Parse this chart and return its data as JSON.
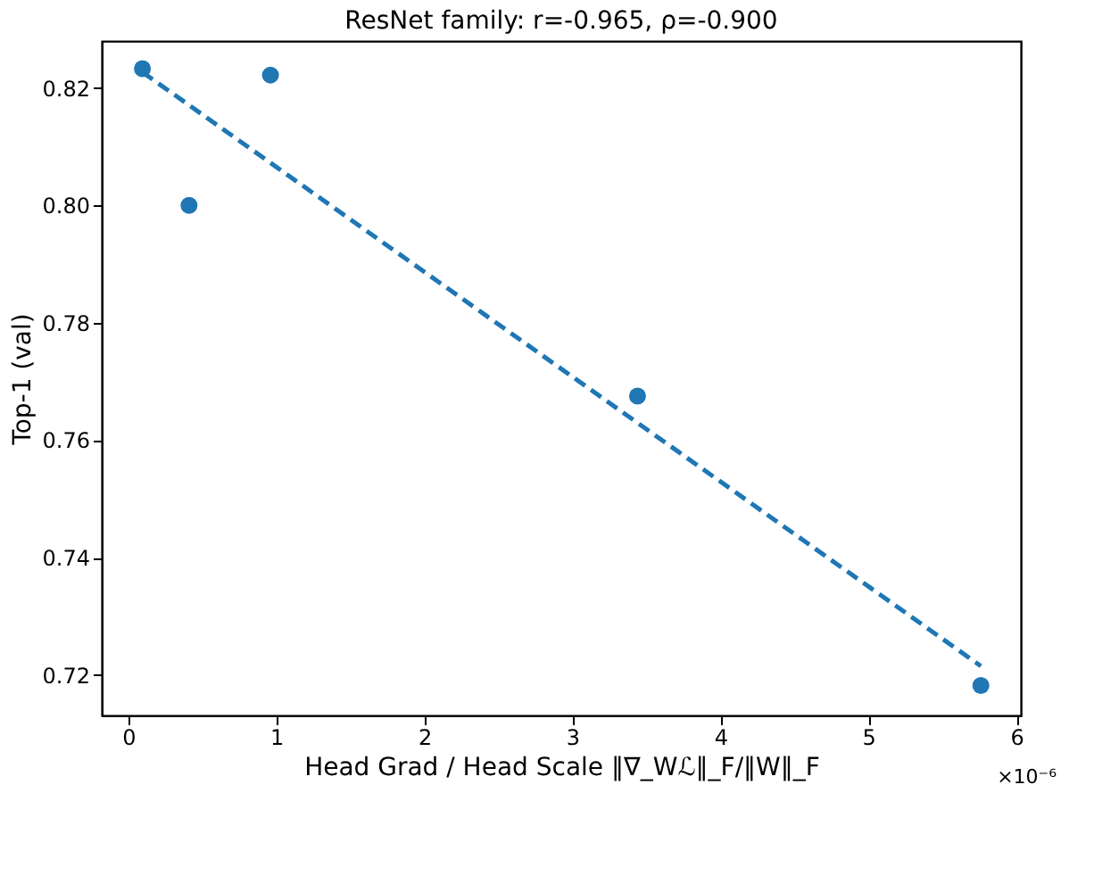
{
  "chart_data": {
    "type": "scatter",
    "title": "ResNet family: r=-0.965,  ρ=-0.900",
    "xlabel": "Head Grad / Head Scale  ‖∇_Wℒ‖_F/‖W‖_F",
    "ylabel": "Top-1 (val)",
    "annotations": [
      "×10⁻⁶"
    ],
    "x": [
      0.095,
      0.41,
      0.96,
      3.44,
      5.76
    ],
    "series": [
      {
        "type": "scatter",
        "color": "#1f77b4",
        "values": [
          0.8233,
          0.8,
          0.8222,
          0.7675,
          0.7182
        ],
        "marker": "circle"
      },
      {
        "type": "line",
        "color": "#1f77b4",
        "x": [
          0.095,
          5.76
        ],
        "values": [
          0.8227,
          0.7215
        ],
        "line_style": "dashed"
      }
    ],
    "xlim": [
      -0.18,
      6.03
    ],
    "ylim": [
      0.7131,
      0.828
    ],
    "xticks": [
      0,
      1,
      2,
      3,
      4,
      5,
      6
    ],
    "yticks": [
      {
        "value": 0.72,
        "label": "0.72"
      },
      {
        "value": 0.74,
        "label": "0.74"
      },
      {
        "value": 0.76,
        "label": "0.76"
      },
      {
        "value": 0.78,
        "label": "0.78"
      },
      {
        "value": 0.8,
        "label": "0.80"
      },
      {
        "value": 0.82,
        "label": "0.82"
      }
    ],
    "grid": false
  }
}
